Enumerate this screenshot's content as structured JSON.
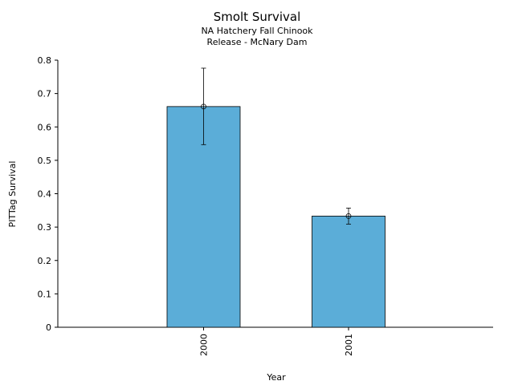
{
  "chart_data": {
    "type": "bar",
    "title": "Smolt Survival",
    "subtitle_lines": [
      "NA Hatchery Fall Chinook",
      "Release - McNary Dam"
    ],
    "xlabel": "Year",
    "ylabel": "PITTag Survival",
    "categories": [
      "2000",
      "2001"
    ],
    "values": [
      0.661,
      0.333
    ],
    "error_low": [
      0.547,
      0.309
    ],
    "error_high": [
      0.776,
      0.357
    ],
    "ylim": [
      0,
      0.8
    ],
    "yticks": [
      "0",
      "0.1",
      "0.2",
      "0.3",
      "0.4",
      "0.5",
      "0.6",
      "0.7",
      "0.8"
    ],
    "bar_color": "#5BADD8",
    "grid": false,
    "legend": "none"
  }
}
